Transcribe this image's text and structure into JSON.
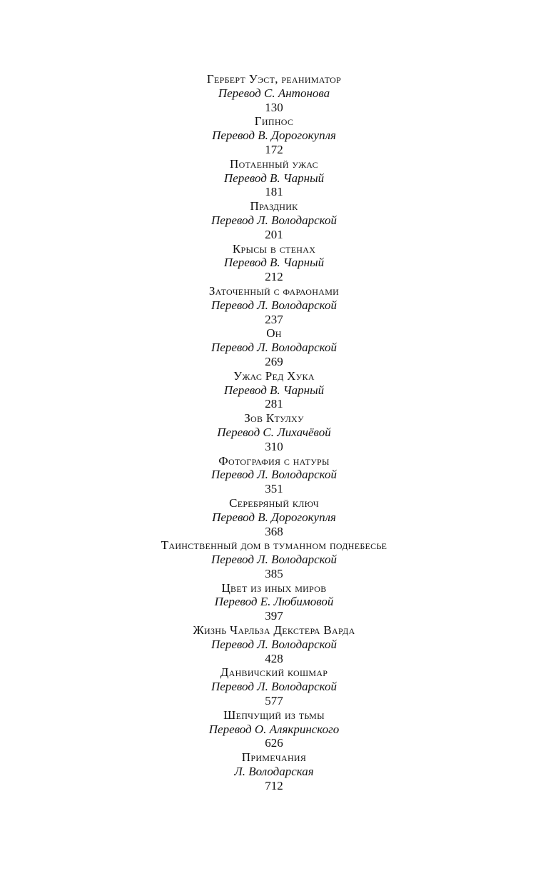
{
  "toc": [
    {
      "title": "Герберт Уэст, реаниматор",
      "translator": "Перевод С. Антонова",
      "page": "130"
    },
    {
      "title": "Гипнос",
      "translator": "Перевод В. Дорогокупля",
      "page": "172"
    },
    {
      "title": "Потаенный ужас",
      "translator": "Перевод В. Чарный",
      "page": "181"
    },
    {
      "title": "Праздник",
      "translator": "Перевод Л. Володарской",
      "page": "201"
    },
    {
      "title": "Крысы в стенах",
      "translator": "Перевод В. Чарный",
      "page": "212"
    },
    {
      "title": "Заточенный с фараонами",
      "translator": "Перевод Л. Володарской",
      "page": "237"
    },
    {
      "title": "Он",
      "translator": "Перевод Л. Володарской",
      "page": "269"
    },
    {
      "title": "Ужас Ред Хука",
      "translator": "Перевод В. Чарный",
      "page": "281"
    },
    {
      "title": "Зов Ктулху",
      "translator": "Перевод С. Лихачёвой",
      "page": "310"
    },
    {
      "title": "Фотография с натуры",
      "translator": "Перевод Л. Володарской",
      "page": "351"
    },
    {
      "title": "Серебряный ключ",
      "translator": "Перевод В. Дорогокупля",
      "page": "368"
    },
    {
      "title": "Таинственный дом в туманном поднебесье",
      "translator": "Перевод Л. Володарской",
      "page": "385"
    },
    {
      "title": "Цвет из иных миров",
      "translator": "Перевод Е. Любимовой",
      "page": "397"
    },
    {
      "title": "Жизнь Чарльза Декстера Варда",
      "translator": "Перевод Л. Володарской",
      "page": "428"
    },
    {
      "title": "Данвичский кошмар",
      "translator": "Перевод Л. Володарской",
      "page": "577"
    },
    {
      "title": "Шепчущий из тьмы",
      "translator": "Перевод О. Алякринского",
      "page": "626"
    },
    {
      "title": "Примечания",
      "translator": "Л. Володарская",
      "page": "712"
    }
  ]
}
